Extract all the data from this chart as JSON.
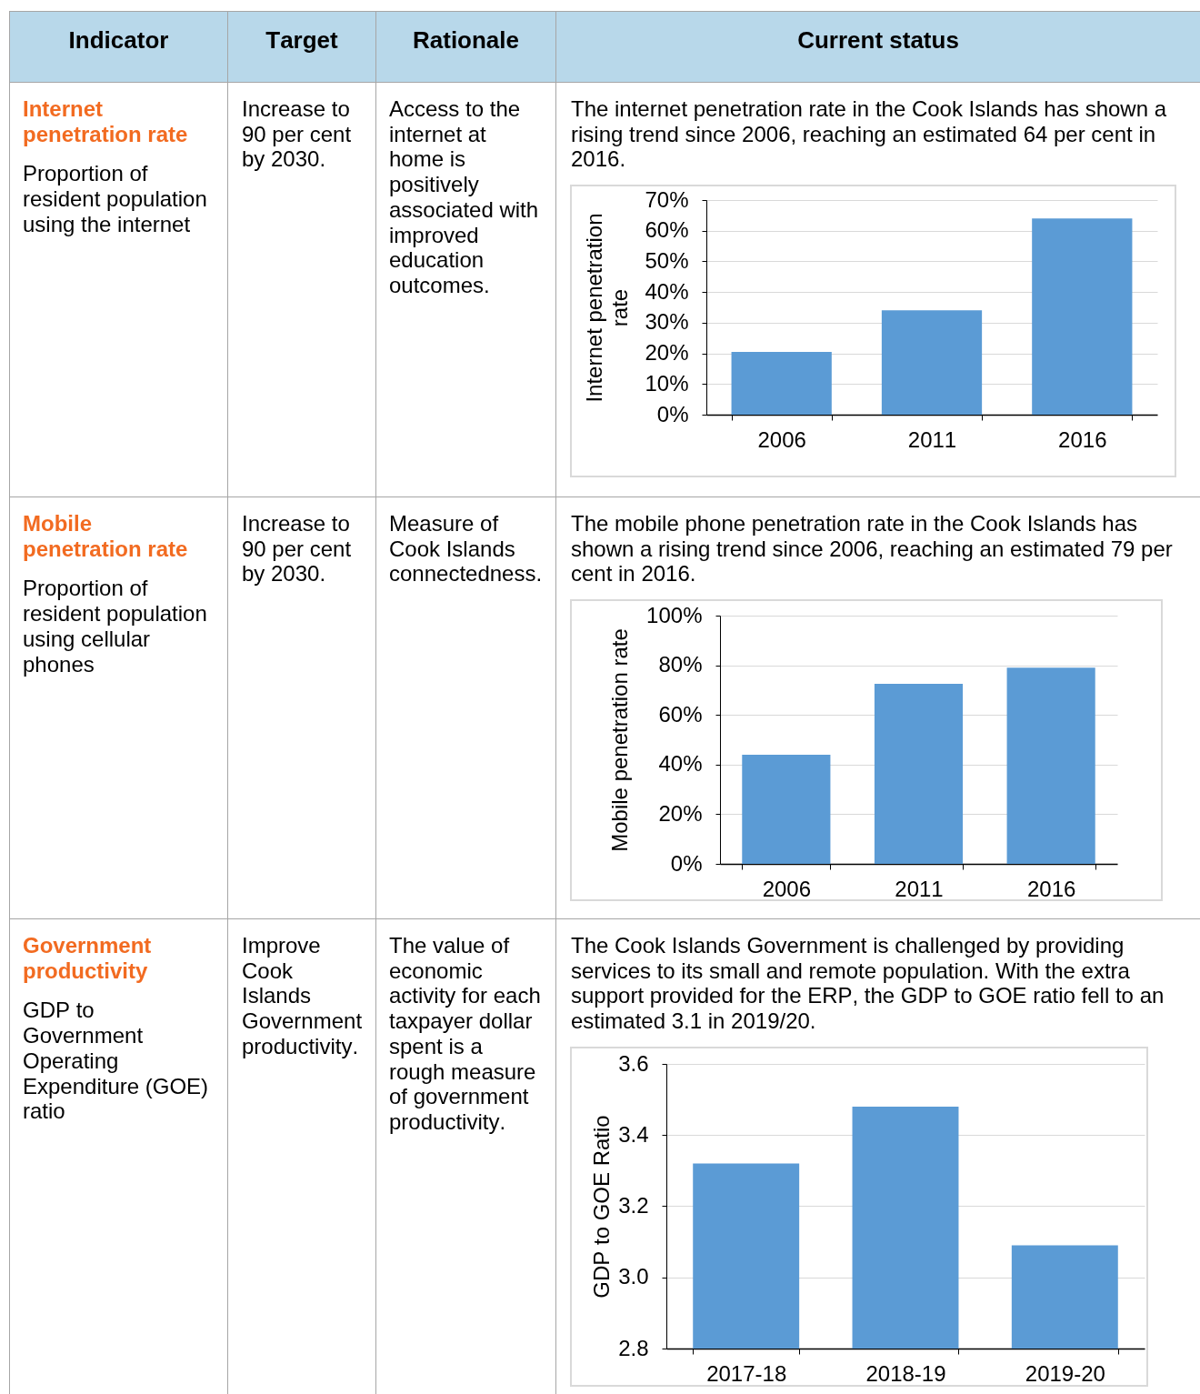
{
  "chart_data": [
    {
      "type": "other",
      "annotations": [
        "Indicator",
        "Target",
        "Rationale",
        "Current status"
      ]
    },
    {
      "type": "other",
      "title": "Internet penetration rate",
      "annotations": [
        "Proportion of resident population using the internet",
        "Increase to 90 per cent by 2030.",
        "Access to the internet at home is positively associated with improved education outcomes."
      ]
    },
    {
      "type": "bar",
      "title": "The internet penetration rate in the Cook Islands has shown a rising trend since 2006, reaching an estimated 64 per cent in 2016.",
      "ylabel": "Internet penetration rate",
      "categories": [
        "2006",
        "2011",
        "2016"
      ],
      "values": [
        20.5,
        34,
        64
      ],
      "color": "#5b9bd5",
      "ylim": [
        0,
        70
      ],
      "yticks": [
        {
          "value": 0,
          "label": "0%"
        },
        {
          "value": 10,
          "label": "10%"
        },
        {
          "value": 20,
          "label": "20%"
        },
        {
          "value": 30,
          "label": "30%"
        },
        {
          "value": 40,
          "label": "40%"
        },
        {
          "value": 50,
          "label": "50%"
        },
        {
          "value": 60,
          "label": "60%"
        },
        {
          "value": 70,
          "label": "70%"
        }
      ],
      "grid": "y"
    },
    {
      "type": "other",
      "title": "Mobile penetration rate",
      "annotations": [
        "Proportion of resident population using cellular phones",
        "Increase to 90 per cent by 2030.",
        "Measure of Cook Islands connectedness."
      ]
    },
    {
      "type": "bar",
      "title": "The mobile phone penetration rate in the Cook Islands has shown a rising trend since 2006, reaching an estimated 79 per cent in 2016.",
      "ylabel": "Mobile penetration rate",
      "categories": [
        "2006",
        "2011",
        "2016"
      ],
      "values": [
        44,
        72.5,
        79
      ],
      "color": "#5b9bd5",
      "ylim": [
        0,
        100
      ],
      "yticks": [
        {
          "value": 0,
          "label": "0%"
        },
        {
          "value": 20,
          "label": "20%"
        },
        {
          "value": 40,
          "label": "40%"
        },
        {
          "value": 60,
          "label": "60%"
        },
        {
          "value": 80,
          "label": "80%"
        },
        {
          "value": 100,
          "label": "100%"
        }
      ],
      "grid": "y"
    },
    {
      "type": "other",
      "title": "Government productivity",
      "annotations": [
        "GDP to Government Operating Expenditure (GOE) ratio",
        "Improve Cook Islands Government productivity.",
        "The value of economic activity for each taxpayer dollar spent is a rough measure of government productivity."
      ]
    },
    {
      "type": "bar",
      "title": "The Cook Islands Government is challenged by providing services to its small and remote population. With the extra support provided for the ERP, the GDP to GOE ratio fell to an estimated 3.1 in 2019/20.",
      "ylabel": "GDP to GOE Ratio",
      "categories": [
        "2017-18",
        "2018-19",
        "2019-20"
      ],
      "values": [
        3.32,
        3.48,
        3.09
      ],
      "color": "#5b9bd5",
      "ylim": [
        2.8,
        3.6
      ],
      "yticks": [
        2.8,
        {
          "value": 3,
          "label": "3.0"
        },
        3.2,
        3.4,
        3.6
      ],
      "grid": "y"
    }
  ]
}
